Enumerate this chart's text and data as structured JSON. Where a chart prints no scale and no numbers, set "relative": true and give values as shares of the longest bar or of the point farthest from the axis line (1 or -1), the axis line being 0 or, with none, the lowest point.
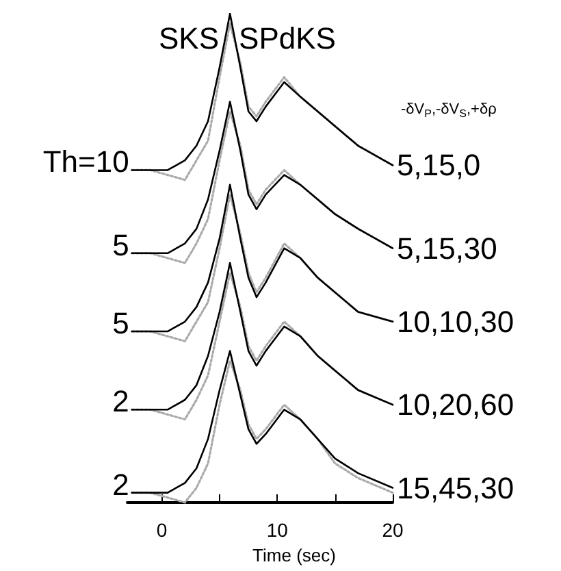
{
  "chart_data": {
    "type": "line",
    "relative": true,
    "xlabel": "Time (sec)",
    "x": [
      -2.6,
      -1,
      0.5,
      2,
      3,
      4,
      5,
      5.9,
      6.8,
      7.5,
      8.2,
      9,
      10.6,
      12,
      13.5,
      15,
      17,
      20
    ],
    "xlim": [
      -3,
      20
    ],
    "xticks": [
      0,
      {
        "value": 5,
        "label": null
      },
      10,
      {
        "value": 15,
        "label": null
      },
      20
    ],
    "tick_labels": "x",
    "grid": false,
    "marker": "none",
    "series": [
      {
        "color": "#000000",
        "line_style": "solid",
        "values": [
          0.68,
          0.68,
          0.68,
          0.7,
          0.73,
          0.78,
          0.89,
          1.0,
          0.89,
          0.8,
          0.78,
          0.81,
          0.86,
          0.83,
          0.8,
          0.77,
          0.73,
          0.69
        ]
      },
      {
        "color": "#aaaaaa",
        "line_style": "dotted",
        "values": [
          0.68,
          0.68,
          0.67,
          0.66,
          0.7,
          0.74,
          0.87,
          0.98,
          0.9,
          0.81,
          0.79,
          0.82,
          0.87,
          0.83,
          0.8,
          0.77,
          0.73,
          0.69
        ]
      },
      {
        "color": "#000000",
        "line_style": "solid",
        "values": [
          0.51,
          0.51,
          0.51,
          0.53,
          0.56,
          0.62,
          0.72,
          0.82,
          0.72,
          0.63,
          0.6,
          0.63,
          0.67,
          0.65,
          0.62,
          0.59,
          0.56,
          0.52
        ]
      },
      {
        "color": "#aaaaaa",
        "line_style": "dotted",
        "values": [
          0.51,
          0.51,
          0.5,
          0.49,
          0.53,
          0.58,
          0.7,
          0.8,
          0.73,
          0.64,
          0.61,
          0.64,
          0.68,
          0.65,
          0.62,
          0.59,
          0.56,
          0.52
        ]
      },
      {
        "color": "#000000",
        "line_style": "solid",
        "values": [
          0.35,
          0.35,
          0.35,
          0.37,
          0.4,
          0.45,
          0.54,
          0.65,
          0.54,
          0.46,
          0.42,
          0.45,
          0.52,
          0.5,
          0.46,
          0.43,
          0.39,
          0.37
        ]
      },
      {
        "color": "#aaaaaa",
        "line_style": "dotted",
        "values": [
          0.35,
          0.35,
          0.34,
          0.33,
          0.37,
          0.41,
          0.52,
          0.63,
          0.55,
          0.47,
          0.43,
          0.46,
          0.53,
          0.5,
          0.46,
          0.43,
          0.39,
          0.37
        ]
      },
      {
        "color": "#000000",
        "line_style": "solid",
        "values": [
          0.19,
          0.19,
          0.19,
          0.21,
          0.24,
          0.3,
          0.39,
          0.49,
          0.39,
          0.31,
          0.28,
          0.31,
          0.36,
          0.34,
          0.3,
          0.27,
          0.23,
          0.2
        ]
      },
      {
        "color": "#aaaaaa",
        "line_style": "dotted",
        "values": [
          0.19,
          0.19,
          0.18,
          0.17,
          0.21,
          0.26,
          0.37,
          0.47,
          0.4,
          0.32,
          0.29,
          0.32,
          0.37,
          0.34,
          0.3,
          0.27,
          0.23,
          0.2
        ]
      },
      {
        "color": "#000000",
        "line_style": "solid",
        "values": [
          0.02,
          0.02,
          0.02,
          0.04,
          0.07,
          0.13,
          0.23,
          0.31,
          0.22,
          0.15,
          0.12,
          0.14,
          0.19,
          0.17,
          0.13,
          0.09,
          0.06,
          0.03
        ]
      },
      {
        "color": "#aaaaaa",
        "line_style": "dotted",
        "values": [
          0.02,
          0.02,
          0.01,
          0.0,
          0.03,
          0.08,
          0.2,
          0.29,
          0.23,
          0.16,
          0.13,
          0.15,
          0.2,
          0.17,
          0.13,
          0.08,
          0.05,
          0.02
        ]
      }
    ],
    "annotations": [
      "SKS",
      "SPdKS",
      "-δV$_{P}$,-δV$_{S}$,+δρ",
      "Th=10",
      "5",
      "5",
      "2",
      "2",
      "5,15,0",
      "5,15,30",
      "10,10,30",
      "10,20,60",
      "15,45,30"
    ]
  }
}
